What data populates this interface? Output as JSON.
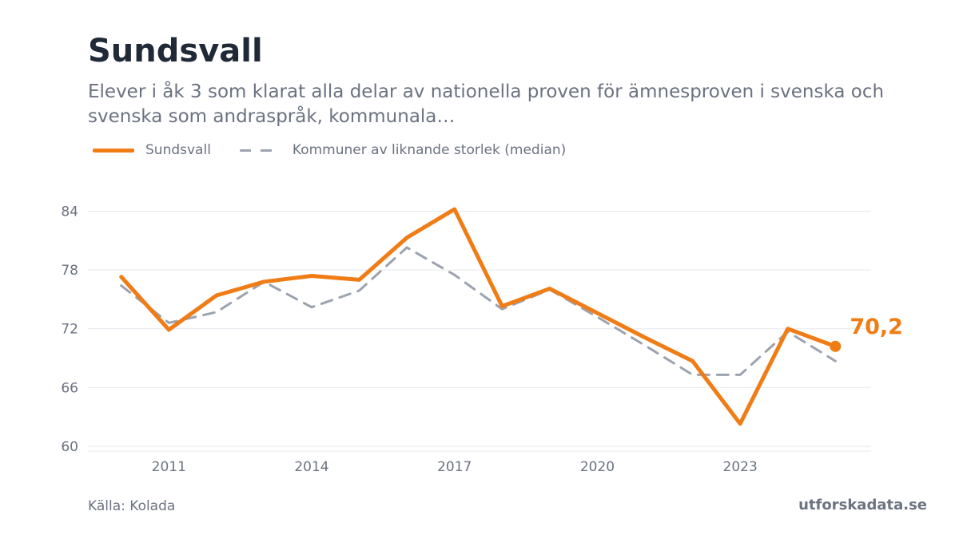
{
  "chart_data": {
    "type": "line",
    "title": "Sundsvall",
    "subtitle": "Elever i åk 3 som klarat alla delar av nationella proven för ämnesproven i svenska och svenska som andraspråk, kommunala…",
    "x": [
      2010,
      2011,
      2012,
      2013,
      2014,
      2015,
      2016,
      2017,
      2018,
      2019,
      2020,
      2021,
      2022,
      2023,
      2024,
      2025
    ],
    "series": [
      {
        "name": "Sundsvall",
        "color": "#f07c16",
        "style": "solid",
        "values": [
          77.3,
          71.9,
          75.4,
          76.8,
          77.4,
          77.0,
          81.3,
          84.2,
          74.3,
          76.1,
          73.6,
          71.1,
          68.7,
          62.3,
          72.0,
          70.2
        ]
      },
      {
        "name": "Kommuner av liknande storlek (median)",
        "color": "#9ca3af",
        "style": "dashed",
        "values": [
          76.4,
          72.6,
          73.7,
          76.8,
          74.2,
          75.9,
          80.3,
          77.5,
          74.0,
          76.0,
          73.2,
          70.3,
          67.3,
          67.3,
          71.7,
          68.7
        ]
      }
    ],
    "y_ticks": [
      60,
      66,
      72,
      78,
      84
    ],
    "x_ticks": [
      2011,
      2014,
      2017,
      2020,
      2023
    ],
    "ylim": [
      59.5,
      86
    ],
    "xlim": [
      2009.3,
      2025.75
    ],
    "end_label": "70,2",
    "grid": "horizontal",
    "legend_position": "top-left"
  },
  "legend": {
    "series1": "Sundsvall",
    "series2": "Kommuner av liknande storlek (median)"
  },
  "footer": {
    "source": "Källa: Kolada",
    "brand": "utforskadata.se"
  }
}
